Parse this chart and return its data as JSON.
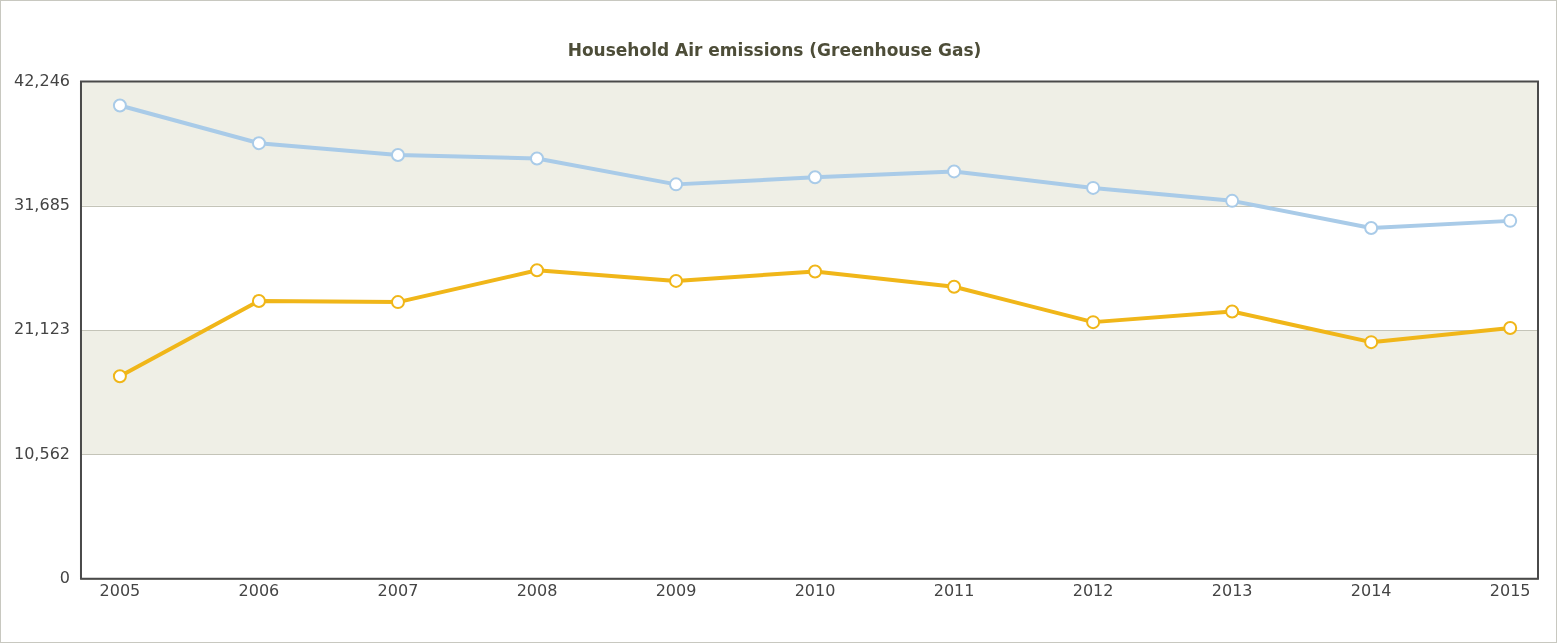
{
  "chart_data": {
    "type": "line",
    "title": "Household Air emissions (Greenhouse Gas)",
    "categories": [
      "2005",
      "2006",
      "2007",
      "2008",
      "2009",
      "2010",
      "2011",
      "2012",
      "2013",
      "2014",
      "2015"
    ],
    "series": [
      {
        "color": "#a9cbe8",
        "values": [
          40200,
          37000,
          36000,
          35700,
          33500,
          34100,
          34600,
          33200,
          32100,
          29800,
          30400
        ]
      },
      {
        "color": "#f0b619",
        "values": [
          17200,
          23600,
          23500,
          26200,
          25300,
          26100,
          24800,
          21800,
          22700,
          20100,
          21300
        ]
      }
    ],
    "ylim": [
      0,
      42246
    ],
    "yticks": [
      0,
      {
        "value": 10562,
        "label": "10,562"
      },
      {
        "value": 21123,
        "label": "21,123"
      },
      {
        "value": 31685,
        "label": "31,685"
      },
      {
        "value": 42246,
        "label": "42,246"
      }
    ],
    "grid": "y",
    "legend": false,
    "marker": "circle",
    "line_style": "solid"
  }
}
